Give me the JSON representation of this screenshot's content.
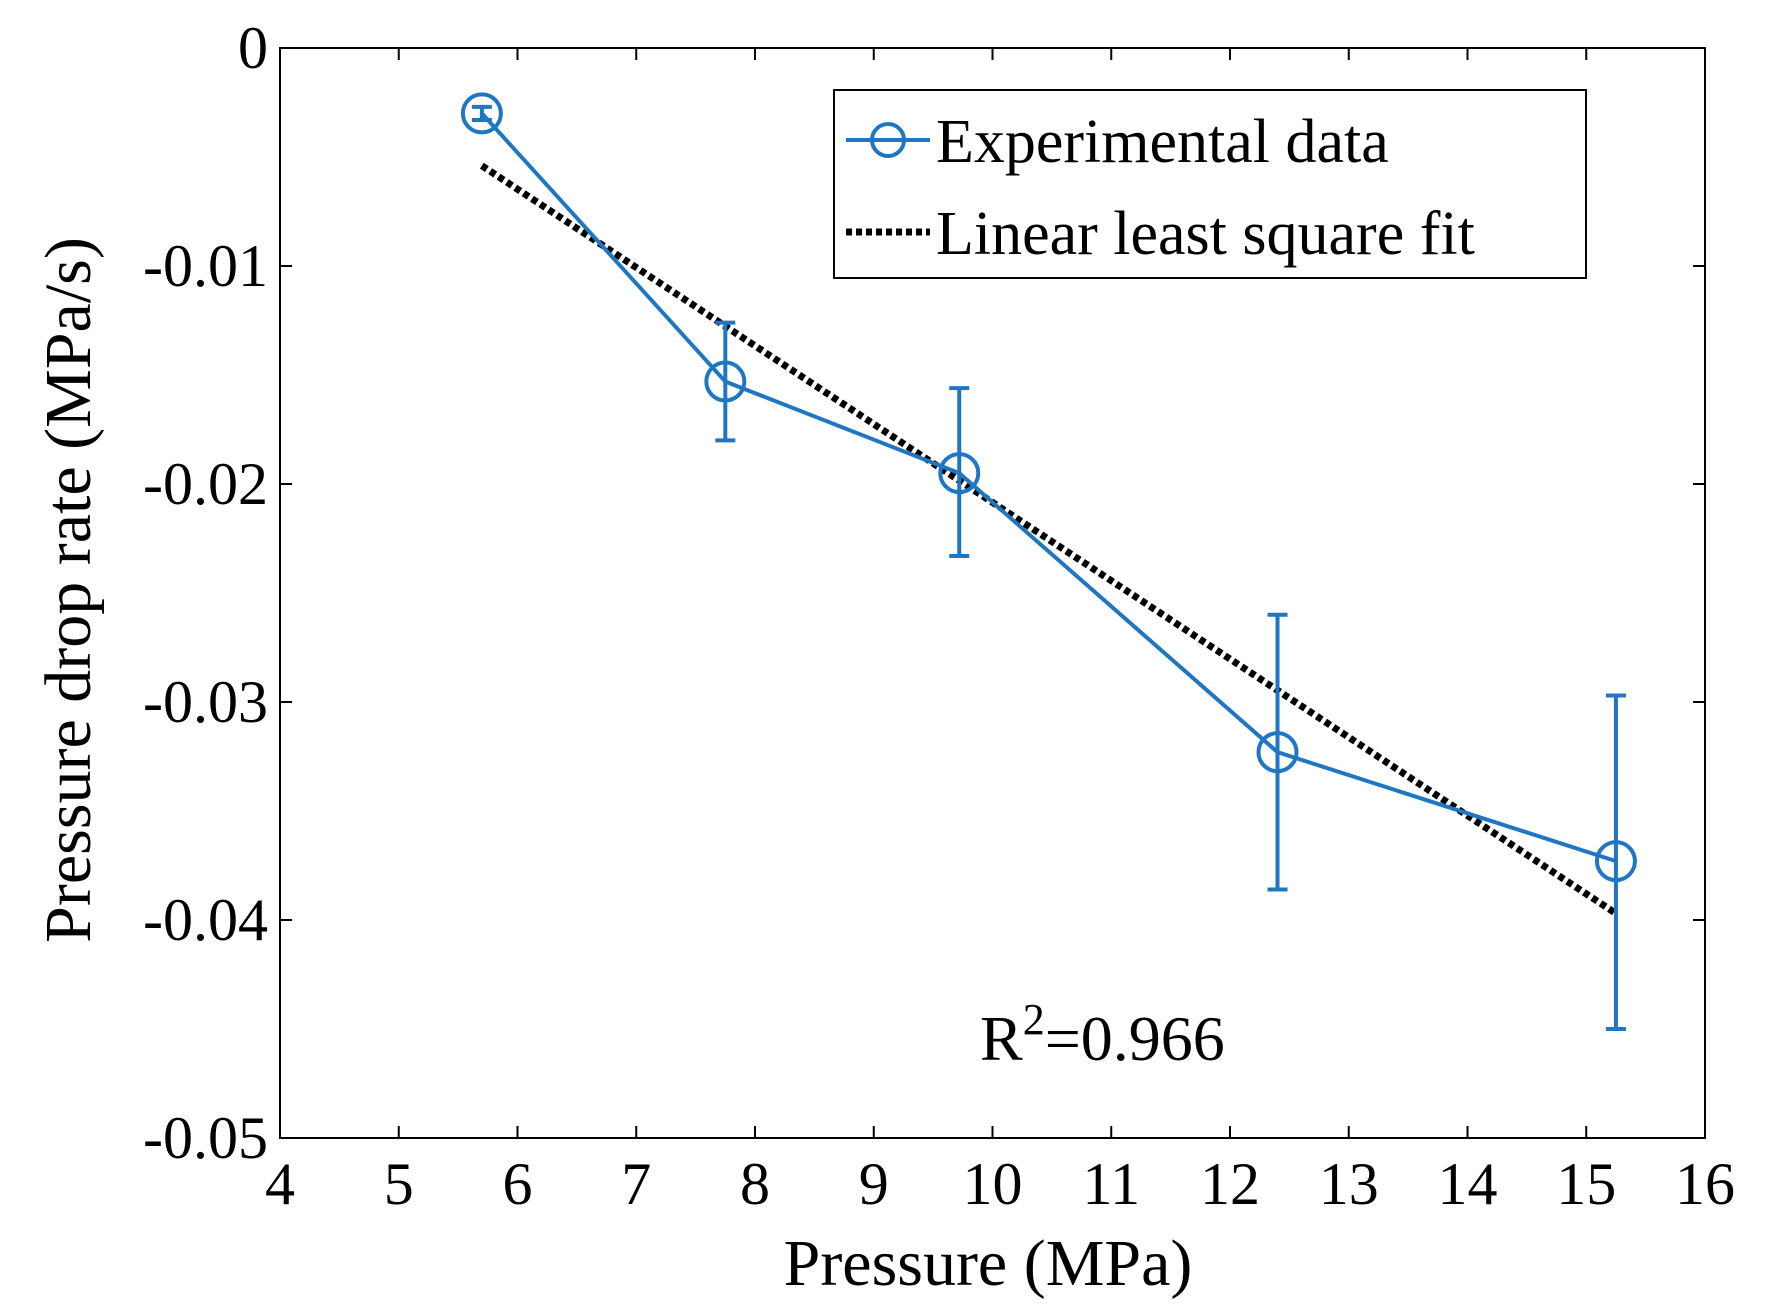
{
  "chart_data": {
    "type": "line",
    "title": "",
    "xlabel": "Pressure (MPa)",
    "ylabel": "Pressure drop rate (MPa/s)",
    "xlim": [
      4,
      16
    ],
    "ylim": [
      -0.05,
      0
    ],
    "xticks": [
      4,
      5,
      6,
      7,
      8,
      9,
      10,
      11,
      12,
      13,
      14,
      15,
      16
    ],
    "xtick_labels": [
      "4",
      "5",
      "6",
      "7",
      "8",
      "9",
      "10",
      "11",
      "12",
      "13",
      "14",
      "15",
      "16"
    ],
    "yticks": [
      0,
      -0.01,
      -0.02,
      -0.03,
      -0.04,
      -0.05
    ],
    "ytick_labels": [
      "0",
      "-0.01",
      "-0.02",
      "-0.03",
      "-0.04",
      "-0.05"
    ],
    "grid": false,
    "legend_position": "top-right",
    "series": [
      {
        "name": "Experimental data",
        "style": "solid line with circle markers and error bars",
        "color": "#1f77c4",
        "x": [
          5.7,
          7.75,
          9.72,
          12.4,
          15.25
        ],
        "y": [
          -0.003,
          -0.0153,
          -0.0195,
          -0.0323,
          -0.0373
        ],
        "error_low": [
          -0.0033,
          -0.018,
          -0.0233,
          -0.0386,
          -0.045
        ],
        "error_high": [
          -0.0027,
          -0.0126,
          -0.0156,
          -0.026,
          -0.0297
        ]
      },
      {
        "name": "Linear least square fit",
        "style": "dotted line",
        "color": "#000000",
        "x": [
          5.7,
          15.25
        ],
        "y": [
          -0.0054,
          -0.0397
        ]
      }
    ],
    "annotations": [
      {
        "base": "R",
        "superscript": "2",
        "text": "=0.966",
        "x": 10.0,
        "y": -0.0455
      }
    ]
  }
}
